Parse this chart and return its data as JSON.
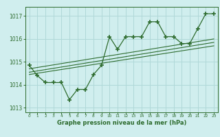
{
  "x": [
    0,
    1,
    2,
    3,
    4,
    5,
    6,
    7,
    8,
    9,
    10,
    11,
    12,
    13,
    14,
    15,
    16,
    17,
    18,
    19,
    20,
    21,
    22,
    23
  ],
  "pressure": [
    1014.85,
    1014.4,
    1014.1,
    1014.1,
    1014.1,
    1013.35,
    1013.8,
    1013.8,
    1014.45,
    1014.85,
    1016.1,
    1015.55,
    1016.1,
    1016.1,
    1016.1,
    1016.75,
    1016.75,
    1016.1,
    1016.1,
    1015.8,
    1015.8,
    1016.45,
    1017.1,
    1017.1
  ],
  "trend_line1": [
    1014.55,
    1015.85
  ],
  "trend_line1_x": [
    0,
    23
  ],
  "trend_line2": [
    1014.7,
    1016.0
  ],
  "trend_line2_x": [
    0,
    23
  ],
  "trend_line3": [
    1014.45,
    1015.7
  ],
  "trend_line3_x": [
    0,
    23
  ],
  "line_color": "#2d6b2d",
  "bg_color": "#d0eeee",
  "grid_color": "#b0d8d8",
  "xlabel": "Graphe pression niveau de la mer (hPa)",
  "ylim": [
    1012.8,
    1017.4
  ],
  "xlim": [
    -0.5,
    23.5
  ],
  "yticks": [
    1013,
    1014,
    1015,
    1016,
    1017
  ],
  "xtick_labels": [
    "0",
    "1",
    "2",
    "3",
    "4",
    "5",
    "6",
    "7",
    "8",
    "9",
    "10",
    "11",
    "12",
    "13",
    "14",
    "15",
    "16",
    "17",
    "18",
    "19",
    "20",
    "21",
    "22",
    "23"
  ]
}
